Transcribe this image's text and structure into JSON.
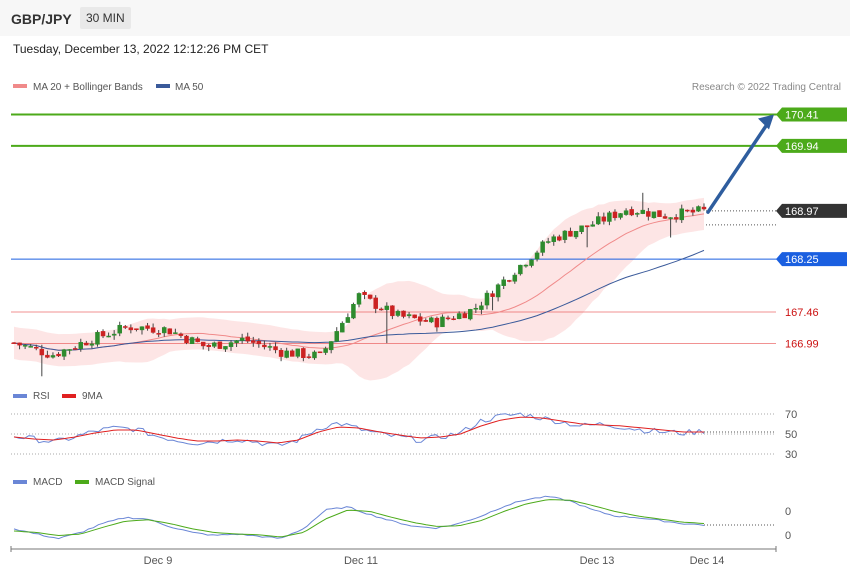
{
  "header": {
    "pair": "GBP/JPY",
    "timeframe": "30 MIN",
    "datetime": "Tuesday, December 13, 2022 12:12:26 PM CET"
  },
  "legend": {
    "ma20": "MA 20 + Bollinger Bands",
    "ma50": "MA 50",
    "rsi": "RSI",
    "rsi_ma": "9MA",
    "macd": "MACD",
    "macd_signal": "MACD Signal"
  },
  "credit": "Research © 2022 Trading Central",
  "colors": {
    "bull": "#2e8b2e",
    "bear": "#cc2222",
    "resistance": "#4caa1a",
    "current": "#333333",
    "pivot": "#1a5fe0",
    "support": "#e94b4b",
    "arrow": "#2e5d9e",
    "ma20": "#f08a8a",
    "ma50": "#3a5a9a",
    "bands": "#fde0e0",
    "rsi": "#6a86d6",
    "rsi_ma": "#e02020",
    "macd": "#6a86d6",
    "macd_signal": "#4caa1a"
  },
  "chart_data": [
    {
      "type": "candlestick",
      "y_range": [
        166.28,
        170.79
      ],
      "x_range": [
        "Dec 8 ~14:30",
        "Dec 14 ~00:00"
      ],
      "x_ticks": [
        "Dec 9",
        "Dec 11",
        "Dec 13",
        "Dec 14"
      ],
      "ohlc_anchors": [
        {
          "x": "Dec 8 start",
          "close": 167.0
        },
        {
          "x": "Dec 8 late",
          "close": 166.82
        },
        {
          "x": "Dec 9 early",
          "close": 167.05
        },
        {
          "x": "Dec 9",
          "close": 167.24
        },
        {
          "x": "Dec 9 midday",
          "close": 167.2
        },
        {
          "x": "Dec 9 afternoon",
          "close": 166.94
        },
        {
          "x": "Dec 9 late",
          "close": 167.05
        },
        {
          "x": "Dec 10",
          "close": 166.86
        },
        {
          "x": "Dec 10 late",
          "close": 166.8
        },
        {
          "x": "Dec 11 open",
          "close": 167.7
        },
        {
          "x": "Dec 11",
          "close": 167.4
        },
        {
          "x": "Dec 11 late",
          "close": 167.3
        },
        {
          "x": "Dec 12 early",
          "close": 167.5
        },
        {
          "x": "Dec 12 midday",
          "close": 168.05
        },
        {
          "x": "Dec 12 afternoon",
          "close": 168.55
        },
        {
          "x": "Dec 12 late",
          "close": 168.75
        },
        {
          "x": "Dec 13 early",
          "close": 169.0
        },
        {
          "x": "Dec 13",
          "close": 168.9
        },
        {
          "x": "Dec 13 midday",
          "close": 168.97
        }
      ],
      "levels": [
        {
          "value": 170.41,
          "label": "170.41",
          "kind": "resistance"
        },
        {
          "value": 169.94,
          "label": "169.94",
          "kind": "resistance"
        },
        {
          "value": 168.97,
          "label": "168.97",
          "kind": "current"
        },
        {
          "value": 168.25,
          "label": "168.25",
          "kind": "pivot"
        },
        {
          "value": 167.46,
          "label": "167.46",
          "kind": "support"
        },
        {
          "value": 166.99,
          "label": "166.99",
          "kind": "support"
        }
      ],
      "arrow": {
        "from": 168.95,
        "to": 170.41
      }
    },
    {
      "type": "line",
      "name": "RSI",
      "y_range": [
        20,
        80
      ],
      "y_ticks": [
        70,
        50,
        30
      ],
      "anchors_rsi": [
        48,
        45,
        42,
        47,
        53,
        56,
        55,
        48,
        44,
        41,
        43,
        45,
        42,
        38,
        44,
        56,
        61,
        55,
        50,
        47,
        44,
        47,
        51,
        63,
        68,
        70,
        66,
        62,
        58,
        60,
        57,
        54,
        52,
        51,
        53
      ],
      "anchors_ma": [
        47,
        45,
        44,
        47,
        51,
        54,
        54,
        50,
        46,
        43,
        43,
        44,
        43,
        41,
        44,
        52,
        57,
        56,
        52,
        49,
        46,
        47,
        50,
        58,
        64,
        67,
        66,
        63,
        60,
        59,
        58,
        56,
        54,
        52,
        52
      ]
    },
    {
      "type": "line",
      "name": "MACD",
      "y_ticks": [
        0,
        0
      ],
      "anchors_macd": [
        -0.05,
        -0.12,
        -0.18,
        -0.1,
        0.02,
        0.1,
        0.08,
        -0.02,
        -0.1,
        -0.14,
        -0.12,
        -0.15,
        -0.18,
        -0.05,
        0.2,
        0.24,
        0.14,
        0.05,
        -0.02,
        -0.04,
        0.02,
        0.12,
        0.25,
        0.34,
        0.38,
        0.32,
        0.2,
        0.12,
        0.1,
        0.06,
        0.02,
        0.0
      ],
      "anchors_signal": [
        -0.08,
        -0.1,
        -0.14,
        -0.12,
        -0.03,
        0.05,
        0.07,
        0.02,
        -0.05,
        -0.1,
        -0.12,
        -0.13,
        -0.16,
        -0.1,
        0.08,
        0.2,
        0.18,
        0.1,
        0.03,
        -0.02,
        -0.01,
        0.06,
        0.18,
        0.28,
        0.34,
        0.33,
        0.26,
        0.18,
        0.12,
        0.08,
        0.04,
        0.02
      ]
    }
  ]
}
